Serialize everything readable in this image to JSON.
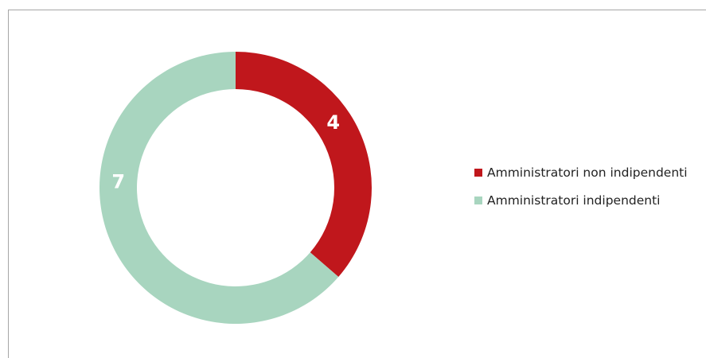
{
  "chart_data": {
    "type": "pie",
    "donut": true,
    "title": "",
    "labels": [
      "Amministratori non indipendenti",
      "Amministratori indipendenti"
    ],
    "values": [
      4,
      7
    ],
    "colors": [
      "#c0171c",
      "#a8d5bf"
    ],
    "start_angle_deg": 0,
    "direction": "clockwise",
    "legend": "right"
  }
}
